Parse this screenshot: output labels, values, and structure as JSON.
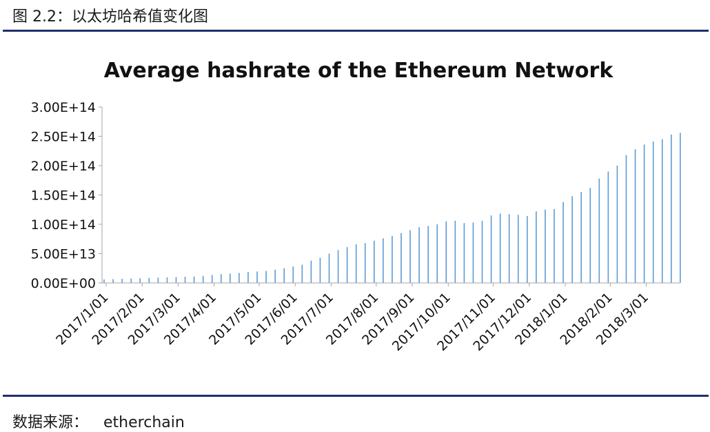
{
  "caption": "图 2.2：以太坊哈希值变化图",
  "source_label": "数据来源：",
  "source_value": "etherchain",
  "colors": {
    "bar": "#5b9bd5",
    "axis": "#a6a6a6",
    "rule": "#1f2f6b"
  },
  "chart_data": {
    "type": "bar",
    "title": "Average hashrate of the Ethereum Network",
    "xlabel": "",
    "ylabel": "",
    "ylim": [
      0,
      300000000000000
    ],
    "grid": false,
    "y_ticks": [
      {
        "value": 0,
        "label": "0.00E+00"
      },
      {
        "value": 50000000000000,
        "label": "5.00E+13"
      },
      {
        "value": 100000000000000,
        "label": "1.00E+14"
      },
      {
        "value": 150000000000000,
        "label": "1.50E+14"
      },
      {
        "value": 200000000000000,
        "label": "2.00E+14"
      },
      {
        "value": 250000000000000,
        "label": "2.50E+14"
      },
      {
        "value": 300000000000000,
        "label": "3.00E+14"
      }
    ],
    "x_tick_labels": [
      "2017/1/01",
      "2017/2/01",
      "2017/3/01",
      "2017/4/01",
      "2017/5/01",
      "2017/6/01",
      "2017/7/01",
      "2017/8/01",
      "2017/9/01",
      "2017/10/01",
      "2017/11/01",
      "2017/12/01",
      "2018/1/01",
      "2018/2/01",
      "2018/3/01"
    ],
    "x_tick_bar_index": [
      0,
      4,
      8,
      12,
      17,
      21,
      25,
      30,
      34,
      38,
      43,
      47,
      51,
      56,
      60
    ],
    "values_e13": [
      0.6,
      0.65,
      0.7,
      0.75,
      0.8,
      0.85,
      0.9,
      0.95,
      1.0,
      1.05,
      1.1,
      1.2,
      1.35,
      1.5,
      1.6,
      1.7,
      1.85,
      1.95,
      2.05,
      2.25,
      2.5,
      2.8,
      3.1,
      3.8,
      4.3,
      5.0,
      5.6,
      6.1,
      6.6,
      6.8,
      7.2,
      7.6,
      8.0,
      8.5,
      9.0,
      9.5,
      9.7,
      10.0,
      10.5,
      10.6,
      10.2,
      10.3,
      10.6,
      11.5,
      11.8,
      11.7,
      11.6,
      11.4,
      12.2,
      12.5,
      12.6,
      13.8,
      14.8,
      15.5,
      16.2,
      17.8,
      19.0,
      20.0,
      21.8,
      22.8,
      23.6,
      24.1,
      24.5,
      25.3,
      25.6
    ]
  }
}
